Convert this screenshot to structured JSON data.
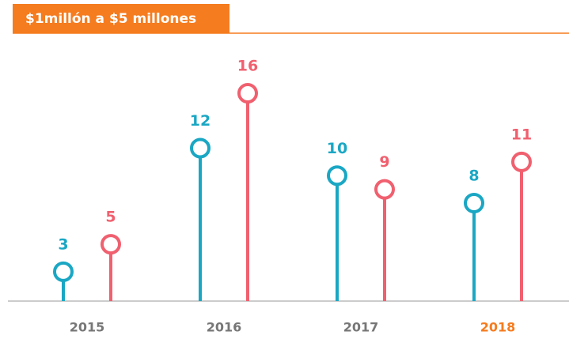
{
  "chart_data": {
    "type": "lollipop",
    "title": "$1millón a $5 millones",
    "title_color": "#f57c1f",
    "categories": [
      "2015",
      "2016",
      "2017",
      "2018"
    ],
    "category_colors": [
      "#777777",
      "#777777",
      "#777777",
      "#f57c1f"
    ],
    "series": [
      {
        "color": "#1aa7c4",
        "values": [
          3,
          12,
          10,
          8
        ]
      },
      {
        "color": "#f0606f",
        "values": [
          5,
          16,
          9,
          11
        ]
      }
    ],
    "ylim": [
      0,
      16
    ]
  }
}
